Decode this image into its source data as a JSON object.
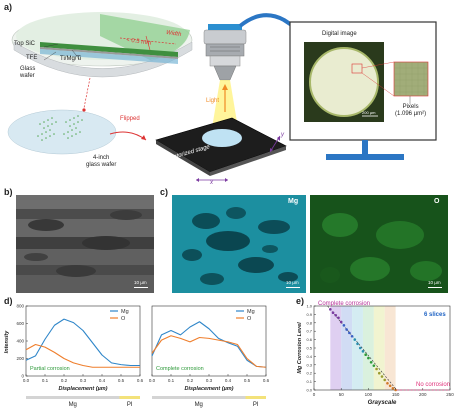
{
  "panel_a": {
    "label": "a)",
    "layers": {
      "top_sic": "Top SiC",
      "tfe": "TFE",
      "ti_mg_ti": "Ti/Mg/Ti",
      "glass_wafer_line1": "Glass",
      "glass_wafer_line2": "wafer",
      "thickness": "< 0.5 mm",
      "width_label": "Width"
    },
    "wafer_label_line1": "4-inch",
    "wafer_label_line2": "glass wafer",
    "flipped": "Flipped",
    "light": "Light",
    "motorized_stage": "Motorized stage",
    "axis_x": "x",
    "axis_y": "y",
    "digital_image": "Digital image",
    "image_scale": "200 µm",
    "pixels_line1": "Pixels",
    "pixels_line2": "(1.096 µm²)"
  },
  "panel_b": {
    "label": "b)",
    "scale": "10 µm"
  },
  "panel_c": {
    "label": "c)",
    "mg_label": "Mg",
    "o_label": "O",
    "scale1": "10 µm",
    "scale2": "10 µm"
  },
  "panel_d": {
    "label": "d)",
    "ylabel": "Intensity",
    "xlabel": "Displacement (µm)",
    "left_annotation": "Partial corrosion",
    "right_annotation": "Complete corrosion",
    "legend_mg": "Mg",
    "legend_o": "O",
    "bar_mg": "Mg",
    "bar_pi": "PI",
    "colors": {
      "mg": "#2f86c9",
      "o": "#ef7e2c",
      "annotation": "#2e9a3a"
    }
  },
  "panel_e": {
    "label": "e)",
    "top_label": "Complete corrosion",
    "bottom_label": "No corrosion",
    "slices": "6 slices",
    "ylabel": "Mg Corrosion Level",
    "xlabel": "Grayscale",
    "colors": {
      "top": "#b8329a",
      "bottom": "#e0307a",
      "slices": "#1f63c4"
    }
  },
  "chart_data": [
    {
      "type": "line",
      "title": "",
      "xlabel": "Displacement (µm)",
      "ylabel": "Intensity",
      "xlim": [
        0,
        0.6
      ],
      "ylim": [
        0,
        800
      ],
      "x_ticks": [
        "0.0",
        "0.1",
        "0.2",
        "0.3",
        "0.4",
        "0.5",
        "0.6"
      ],
      "y_ticks": [
        "0",
        "200",
        "400",
        "600",
        "800"
      ],
      "x": [
        0.0,
        0.05,
        0.1,
        0.15,
        0.2,
        0.25,
        0.3,
        0.35,
        0.4,
        0.45,
        0.5,
        0.55,
        0.6
      ],
      "series": [
        {
          "name": "Mg",
          "values": [
            180,
            230,
            420,
            580,
            650,
            610,
            520,
            380,
            240,
            150,
            130,
            120,
            120
          ]
        },
        {
          "name": "O",
          "values": [
            300,
            360,
            330,
            270,
            200,
            150,
            120,
            100,
            100,
            100,
            100,
            100,
            100
          ]
        }
      ]
    },
    {
      "type": "line",
      "title": "",
      "xlabel": "Displacement (µm)",
      "ylabel": "",
      "xlim": [
        0,
        0.6
      ],
      "ylim": [
        0,
        800
      ],
      "x_ticks": [
        "0.0",
        "0.1",
        "0.2",
        "0.3",
        "0.4",
        "0.5",
        "0.6"
      ],
      "x": [
        0.0,
        0.05,
        0.1,
        0.15,
        0.2,
        0.25,
        0.3,
        0.35,
        0.4,
        0.45,
        0.5,
        0.55,
        0.6
      ],
      "series": [
        {
          "name": "Mg",
          "values": [
            230,
            470,
            520,
            470,
            560,
            620,
            540,
            430,
            380,
            340,
            180,
            110,
            100
          ]
        },
        {
          "name": "O",
          "values": [
            260,
            410,
            460,
            430,
            390,
            440,
            430,
            410,
            390,
            360,
            200,
            110,
            100
          ]
        }
      ]
    },
    {
      "type": "scatter",
      "title": "",
      "xlabel": "Grayscale",
      "ylabel": "Mg Corrosion Level",
      "xlim": [
        0,
        250
      ],
      "ylim": [
        0,
        1.0
      ],
      "x_ticks": [
        "0",
        "50",
        "100",
        "150",
        "200",
        "250"
      ],
      "y_ticks": [
        "0.0",
        "0.1",
        "0.2",
        "0.3",
        "0.4",
        "0.5",
        "0.6",
        "0.7",
        "0.8",
        "0.9",
        "1.0"
      ],
      "x": [
        30,
        35,
        40,
        45,
        50,
        55,
        60,
        65,
        70,
        75,
        80,
        85,
        90,
        95,
        100,
        105,
        110,
        115,
        120,
        125,
        130,
        135,
        140,
        145,
        150
      ],
      "values": [
        0.96,
        0.92,
        0.89,
        0.86,
        0.81,
        0.77,
        0.72,
        0.68,
        0.64,
        0.6,
        0.55,
        0.5,
        0.46,
        0.42,
        0.38,
        0.33,
        0.29,
        0.25,
        0.2,
        0.16,
        0.12,
        0.08,
        0.05,
        0.02,
        0.0
      ]
    }
  ]
}
